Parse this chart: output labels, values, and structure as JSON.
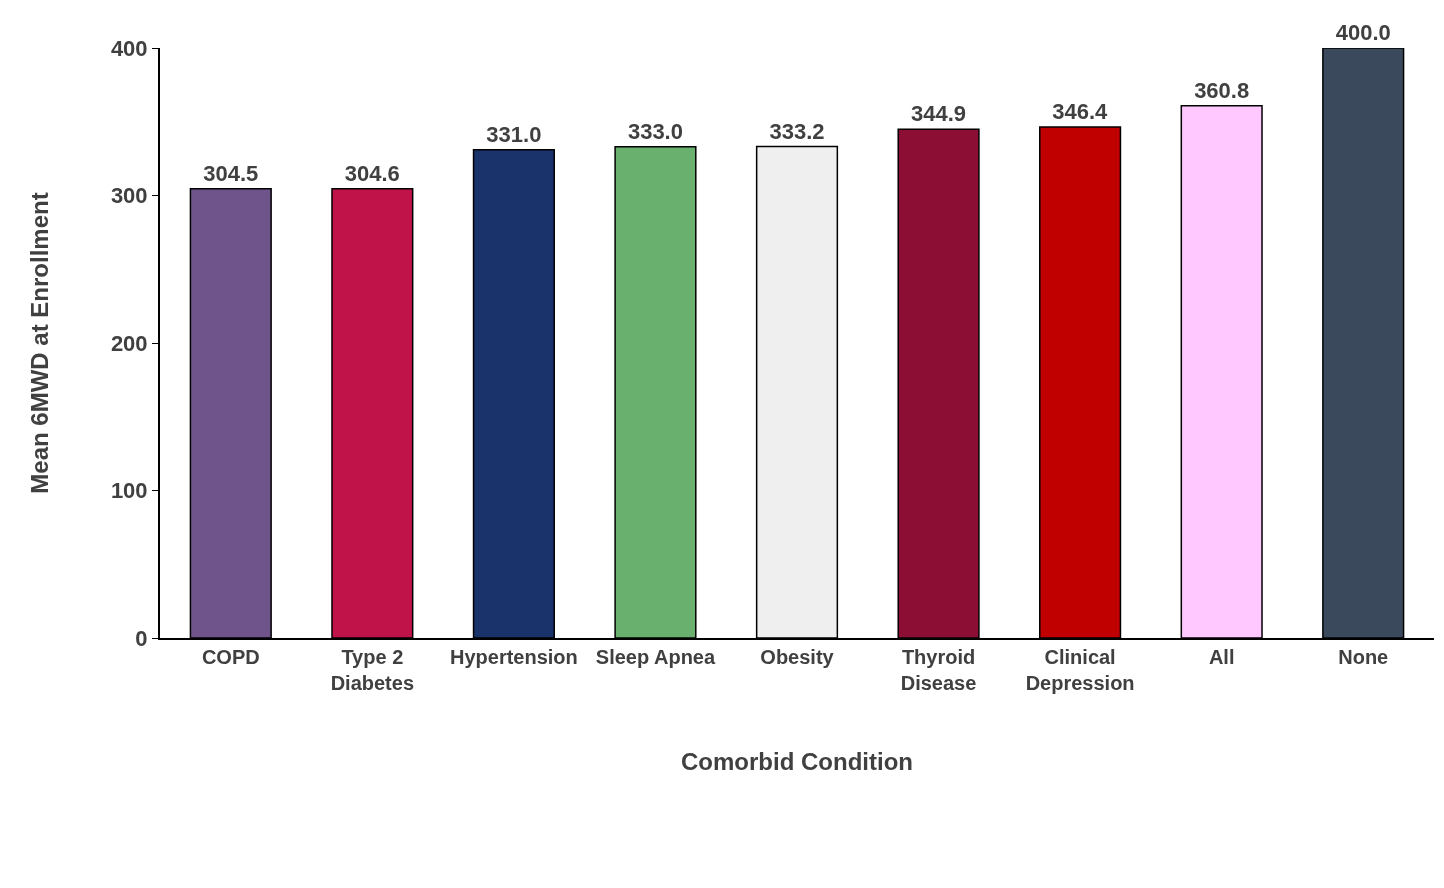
{
  "chart_data": {
    "type": "bar",
    "xlabel": "Comorbid Condition",
    "ylabel": "Mean 6MWD at Enrollment",
    "categories": [
      "COPD",
      "Type 2\nDiabetes",
      "Hypertension",
      "Sleep Apnea",
      "Obesity",
      "Thyroid\nDisease",
      "Clinical\nDepression",
      "All",
      "None"
    ],
    "values": [
      304.5,
      304.6,
      331.0,
      333.0,
      333.2,
      344.9,
      346.4,
      360.8,
      400.0
    ],
    "value_labels": [
      "304.5",
      "304.6",
      "331.0",
      "333.0",
      "333.2",
      "344.9",
      "346.4",
      "360.8",
      "400.0"
    ],
    "colors": [
      "#6f548c",
      "#c0134a",
      "#1a336b",
      "#69b06e",
      "#efefef",
      "#8c0e35",
      "#c00000",
      "#ffc9ff",
      "#3a4a5c"
    ],
    "ylim": [
      0,
      400
    ],
    "yticks": [
      0,
      100,
      200,
      300,
      400
    ]
  }
}
